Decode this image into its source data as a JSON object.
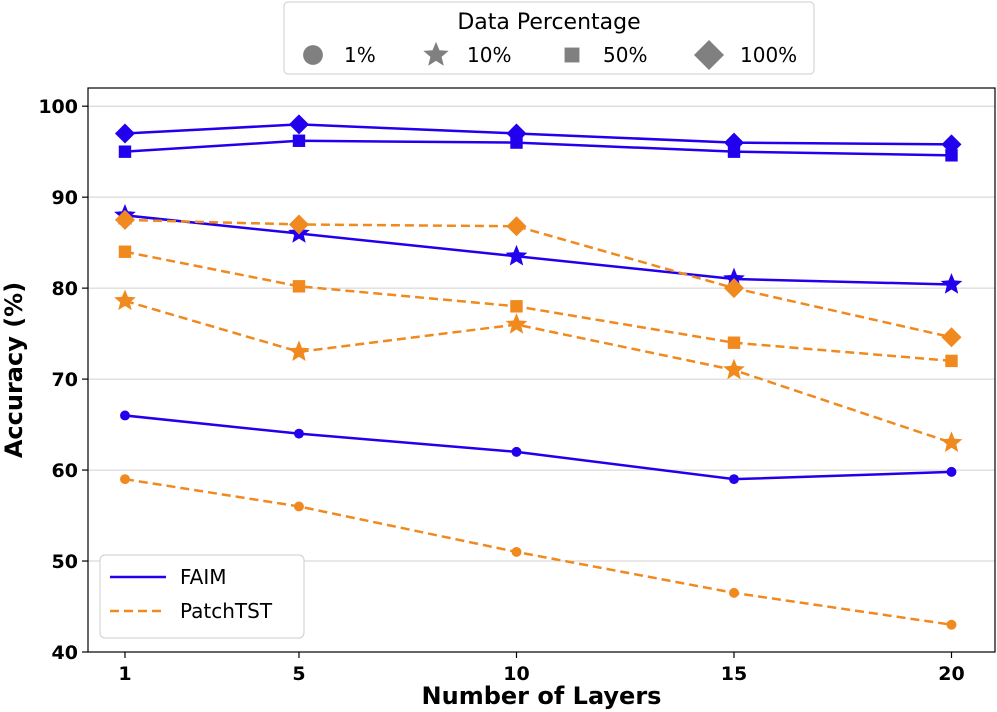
{
  "chart_data": {
    "type": "line",
    "xlabel": "Number of Layers",
    "ylabel": "Accuracy (%)",
    "categories": [
      "1",
      "5",
      "10",
      "15",
      "20"
    ],
    "x": [
      1,
      5,
      10,
      15,
      20
    ],
    "ylim": [
      40,
      102
    ],
    "yticks": [
      40,
      50,
      60,
      70,
      80,
      90,
      100
    ],
    "grid": "horizontal",
    "colors": {
      "FAIM": "#2200ee",
      "PatchTST": "#f0891e",
      "marker_legend": "#808080",
      "grid": "#d0d0d0"
    },
    "models": [
      {
        "name": "FAIM",
        "style": "solid"
      },
      {
        "name": "PatchTST",
        "style": "dashed"
      }
    ],
    "percentages": [
      {
        "label": "1%",
        "marker": "circle"
      },
      {
        "label": "10%",
        "marker": "star"
      },
      {
        "label": "50%",
        "marker": "square"
      },
      {
        "label": "100%",
        "marker": "diamond"
      }
    ],
    "series": [
      {
        "model": "FAIM",
        "pct": "1%",
        "values": [
          66,
          64,
          62,
          59,
          59.8
        ]
      },
      {
        "model": "FAIM",
        "pct": "10%",
        "values": [
          88,
          86,
          83.5,
          81,
          80.4
        ]
      },
      {
        "model": "FAIM",
        "pct": "50%",
        "values": [
          95,
          96.2,
          96,
          95,
          94.6
        ]
      },
      {
        "model": "FAIM",
        "pct": "100%",
        "values": [
          97,
          98,
          97,
          96,
          95.8
        ]
      },
      {
        "model": "PatchTST",
        "pct": "1%",
        "values": [
          59,
          56,
          51,
          46.5,
          43
        ]
      },
      {
        "model": "PatchTST",
        "pct": "10%",
        "values": [
          78.6,
          73,
          76,
          71,
          63
        ]
      },
      {
        "model": "PatchTST",
        "pct": "50%",
        "values": [
          84,
          80.2,
          78,
          74,
          72
        ]
      },
      {
        "model": "PatchTST",
        "pct": "100%",
        "values": [
          87.5,
          87,
          86.8,
          80,
          74.6
        ]
      }
    ],
    "legend_marker_title": "Data Percentage",
    "legend_marker_placement": "top-center-outside",
    "legend_model_placement": "lower-left"
  }
}
